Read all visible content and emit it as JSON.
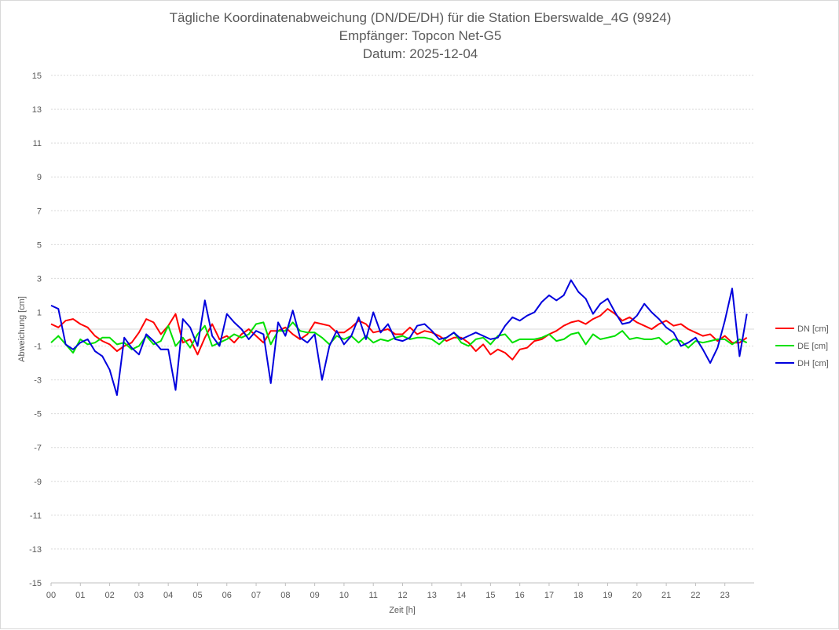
{
  "chart_data": {
    "type": "line",
    "title_lines": [
      "Tägliche Koordinatenabweichung (DN/DE/DH) für die Station Eberswalde_4G (9924)",
      "Empfänger: Topcon Net-G5",
      "Datum: 2025-12-04"
    ],
    "xlabel": "Zeit [h]",
    "ylabel": "Abweichung [cm]",
    "xlim": [
      0,
      24
    ],
    "ylim": [
      -15,
      15
    ],
    "x_ticks": [
      "00",
      "01",
      "02",
      "03",
      "04",
      "05",
      "06",
      "07",
      "08",
      "09",
      "10",
      "11",
      "12",
      "13",
      "14",
      "15",
      "16",
      "17",
      "18",
      "19",
      "20",
      "21",
      "22",
      "23"
    ],
    "y_ticks": [
      15,
      13,
      11,
      9,
      7,
      5,
      3,
      1,
      -1,
      -3,
      -5,
      -7,
      -9,
      -11,
      -13,
      -15
    ],
    "grid": "horizontal dotted",
    "legend_position": "right",
    "x_step_h": 0.25,
    "series": [
      {
        "name": "DN [cm]",
        "color": "#ff0000",
        "values": [
          0.3,
          0.1,
          0.5,
          0.6,
          0.3,
          0.1,
          -0.4,
          -0.7,
          -0.9,
          -1.3,
          -1.0,
          -0.8,
          -0.2,
          0.6,
          0.4,
          -0.3,
          0.2,
          0.9,
          -0.8,
          -0.6,
          -1.5,
          -0.5,
          0.3,
          -0.6,
          -0.4,
          -0.8,
          -0.3,
          0.0,
          -0.4,
          -0.8,
          -0.1,
          -0.1,
          0.1,
          -0.3,
          -0.6,
          -0.3,
          0.4,
          0.3,
          0.2,
          -0.2,
          -0.2,
          0.1,
          0.5,
          0.3,
          -0.2,
          -0.1,
          0.0,
          -0.3,
          -0.3,
          0.1,
          -0.3,
          -0.1,
          -0.2,
          -0.4,
          -0.7,
          -0.5,
          -0.5,
          -0.8,
          -1.3,
          -0.9,
          -1.5,
          -1.2,
          -1.4,
          -1.8,
          -1.2,
          -1.1,
          -0.7,
          -0.6,
          -0.3,
          -0.1,
          0.2,
          0.4,
          0.5,
          0.3,
          0.6,
          0.8,
          1.2,
          0.9,
          0.5,
          0.7,
          0.4,
          0.2,
          0.0,
          0.3,
          0.5,
          0.2,
          0.3,
          0.0,
          -0.2,
          -0.4,
          -0.3,
          -0.7,
          -0.4,
          -0.8,
          -0.8,
          -0.5
        ]
      },
      {
        "name": "DE [cm]",
        "color": "#00e000",
        "values": [
          -0.8,
          -0.4,
          -0.9,
          -1.4,
          -0.6,
          -0.9,
          -0.8,
          -0.5,
          -0.5,
          -0.9,
          -0.8,
          -1.2,
          -1.0,
          -0.4,
          -0.9,
          -0.7,
          0.2,
          -1.0,
          -0.5,
          -1.1,
          -0.3,
          0.2,
          -1.0,
          -0.8,
          -0.6,
          -0.3,
          -0.5,
          -0.3,
          0.3,
          0.4,
          -0.9,
          -0.1,
          -0.1,
          0.4,
          -0.1,
          -0.2,
          -0.2,
          -0.5,
          -0.9,
          -0.4,
          -0.6,
          -0.4,
          -0.8,
          -0.4,
          -0.8,
          -0.6,
          -0.7,
          -0.5,
          -0.4,
          -0.6,
          -0.5,
          -0.5,
          -0.6,
          -0.9,
          -0.5,
          -0.2,
          -0.8,
          -1.0,
          -0.6,
          -0.5,
          -0.9,
          -0.4,
          -0.3,
          -0.8,
          -0.6,
          -0.6,
          -0.6,
          -0.5,
          -0.3,
          -0.7,
          -0.6,
          -0.3,
          -0.2,
          -0.9,
          -0.3,
          -0.6,
          -0.5,
          -0.4,
          -0.1,
          -0.6,
          -0.5,
          -0.6,
          -0.6,
          -0.5,
          -0.9,
          -0.6,
          -0.7,
          -1.1,
          -0.7,
          -0.8,
          -0.7,
          -0.6,
          -0.6,
          -0.9,
          -0.6,
          -0.8
        ]
      },
      {
        "name": "DH [cm]",
        "color": "#0000dd",
        "values": [
          1.4,
          1.2,
          -0.9,
          -1.2,
          -0.8,
          -0.6,
          -1.3,
          -1.6,
          -2.4,
          -3.9,
          -0.5,
          -1.1,
          -1.5,
          -0.3,
          -0.7,
          -1.2,
          -1.2,
          -3.6,
          0.6,
          0.1,
          -1.0,
          1.7,
          -0.4,
          -1.0,
          0.9,
          0.4,
          0.0,
          -0.6,
          -0.1,
          -0.3,
          -3.2,
          0.4,
          -0.4,
          1.1,
          -0.5,
          -0.8,
          -0.3,
          -3.0,
          -1.0,
          -0.1,
          -0.9,
          -0.4,
          0.7,
          -0.6,
          1.0,
          -0.2,
          0.3,
          -0.6,
          -0.7,
          -0.5,
          0.2,
          0.3,
          -0.1,
          -0.6,
          -0.5,
          -0.2,
          -0.6,
          -0.4,
          -0.2,
          -0.4,
          -0.6,
          -0.5,
          0.2,
          0.7,
          0.5,
          0.8,
          1.0,
          1.6,
          2.0,
          1.7,
          2.0,
          2.9,
          2.2,
          1.8,
          0.9,
          1.5,
          1.8,
          1.0,
          0.3,
          0.4,
          0.8,
          1.5,
          1.0,
          0.6,
          0.1,
          -0.2,
          -1.0,
          -0.8,
          -0.5,
          -1.2,
          -2.0,
          -1.1,
          0.5,
          2.4,
          -1.6,
          0.9
        ]
      }
    ]
  }
}
